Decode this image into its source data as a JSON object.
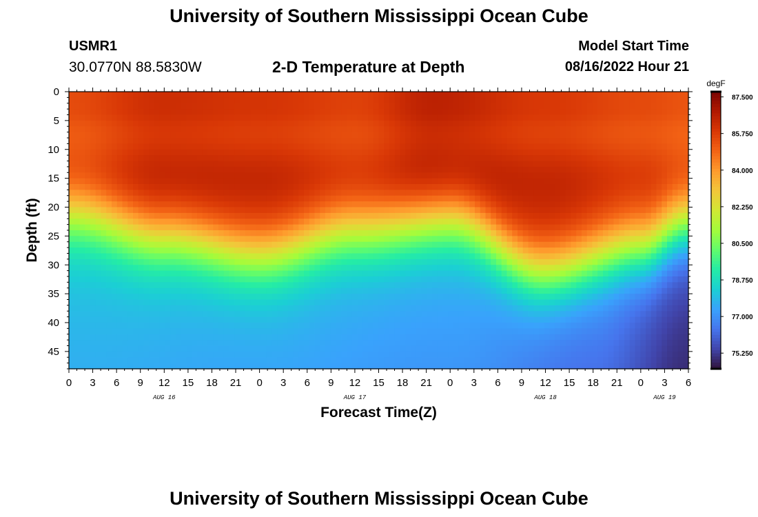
{
  "header": {
    "title": "University of Southern Mississippi Ocean Cube",
    "station": "USMR1",
    "coords": "30.0770N  88.5830W",
    "subtitle": "2-D Temperature at Depth",
    "model_start_label": "Model Start Time",
    "model_start_value": "08/16/2022 Hour 21"
  },
  "footer": {
    "title": "University of Southern Mississippi Ocean Cube"
  },
  "colors": {
    "palette": [
      "#30123b",
      "#4145ab",
      "#4675ed",
      "#39a2fc",
      "#1bcfd4",
      "#24eca6",
      "#61fc6c",
      "#a4fc3b",
      "#d1e834",
      "#f3c63a",
      "#fe9b2d",
      "#f36315",
      "#d93806",
      "#b11901",
      "#7a0402"
    ]
  },
  "chart_data": {
    "type": "heatmap",
    "title": "2-D Temperature at Depth",
    "xlabel": "Forecast Time(Z)",
    "ylabel": "Depth (ft)",
    "x_range_hours": [
      0,
      78
    ],
    "y_range_ft": [
      0,
      48
    ],
    "x_ticks": [
      "0",
      "3",
      "6",
      "9",
      "12",
      "15",
      "18",
      "21",
      "0",
      "3",
      "6",
      "9",
      "12",
      "15",
      "18",
      "21",
      "0",
      "3",
      "6",
      "9",
      "12",
      "15",
      "18",
      "21",
      "0",
      "3",
      "6"
    ],
    "y_ticks": [
      "0",
      "5",
      "10",
      "15",
      "20",
      "25",
      "30",
      "35",
      "40",
      "45"
    ],
    "date_labels": [
      {
        "hour": 12,
        "label": "AUG 16"
      },
      {
        "hour": 36,
        "label": "AUG 17"
      },
      {
        "hour": 60,
        "label": "AUG 18"
      },
      {
        "hour": 75,
        "label": "AUG 19"
      }
    ],
    "colorbar": {
      "unit": "degF",
      "min": 74.5,
      "max": 87.75,
      "tick_values": [
        "75.250",
        "77.000",
        "78.750",
        "80.500",
        "82.250",
        "84.000",
        "85.750",
        "87.500"
      ]
    },
    "thermocline_depth_ft": [
      {
        "hour": 0,
        "depth": 21
      },
      {
        "hour": 12,
        "depth": 25
      },
      {
        "hour": 24,
        "depth": 28
      },
      {
        "hour": 36,
        "depth": 24
      },
      {
        "hour": 48,
        "depth": 22
      },
      {
        "hour": 60,
        "depth": 31
      },
      {
        "hour": 72,
        "depth": 27
      },
      {
        "hour": 78,
        "depth": 23
      }
    ],
    "surface_temp_degF": [
      {
        "hour": 0,
        "value": 86.2
      },
      {
        "hour": 12,
        "value": 86.9
      },
      {
        "hour": 24,
        "value": 86.7
      },
      {
        "hour": 36,
        "value": 86.4
      },
      {
        "hour": 46,
        "value": 87.3
      },
      {
        "hour": 60,
        "value": 86.6
      },
      {
        "hour": 72,
        "value": 86.2
      },
      {
        "hour": 78,
        "value": 86.0
      }
    ],
    "bottom_temp_degF": [
      {
        "hour": 0,
        "value": 77.6
      },
      {
        "hour": 24,
        "value": 77.4
      },
      {
        "hour": 48,
        "value": 77.1
      },
      {
        "hour": 66,
        "value": 76.3
      },
      {
        "hour": 78,
        "value": 75.0
      }
    ]
  }
}
